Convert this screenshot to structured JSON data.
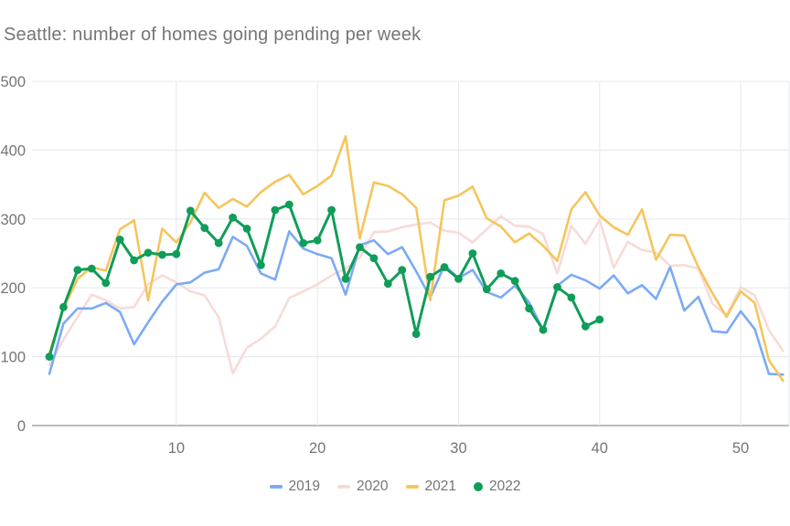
{
  "title": "Seattle: number of homes going pending per week",
  "chart_data": {
    "type": "line",
    "title": "Seattle: number of homes going pending per week",
    "xlabel": "",
    "ylabel": "",
    "x_ticks": [
      10,
      20,
      30,
      40,
      50
    ],
    "y_ticks": [
      0,
      100,
      200,
      300,
      400,
      500
    ],
    "xlim": [
      1,
      53
    ],
    "ylim": [
      0,
      500
    ],
    "grid": true,
    "legend_position": "bottom",
    "colors": {
      "axis_text": "#757575",
      "gridline": "#e8eaed",
      "axis_line": "#b0b3b8",
      "title_text": "#757575"
    },
    "series": [
      {
        "name": "2019",
        "color": "#7baaf7",
        "marker": false,
        "x_start_week": 1,
        "values": [
          75,
          148,
          170,
          170,
          178,
          165,
          118,
          150,
          180,
          205,
          208,
          222,
          227,
          274,
          261,
          221,
          212,
          282,
          257,
          249,
          243,
          190,
          262,
          269,
          249,
          259,
          224,
          186,
          233,
          214,
          226,
          194,
          186,
          203,
          179,
          139,
          203,
          219,
          211,
          199,
          218,
          192,
          204,
          184,
          230,
          167,
          187,
          137,
          135,
          166,
          140,
          75,
          74
        ]
      },
      {
        "name": "2020",
        "color": "#f7dbd8",
        "marker": false,
        "x_start_week": 1,
        "values": [
          88,
          125,
          158,
          190,
          182,
          170,
          172,
          205,
          218,
          208,
          195,
          189,
          157,
          76,
          113,
          126,
          144,
          185,
          195,
          205,
          218,
          228,
          244,
          281,
          282,
          288,
          292,
          295,
          283,
          280,
          266,
          285,
          304,
          290,
          289,
          278,
          221,
          290,
          264,
          299,
          229,
          267,
          255,
          251,
          232,
          233,
          228,
          177,
          160,
          201,
          189,
          139,
          108
        ]
      },
      {
        "name": "2021",
        "color": "#f5c55c",
        "marker": false,
        "x_start_week": 1,
        "values": [
          105,
          170,
          213,
          230,
          225,
          285,
          298,
          182,
          286,
          266,
          295,
          338,
          316,
          329,
          318,
          339,
          354,
          364,
          336,
          348,
          363,
          420,
          272,
          353,
          348,
          336,
          316,
          182,
          327,
          334,
          347,
          301,
          289,
          266,
          279,
          261,
          239,
          314,
          339,
          305,
          288,
          277,
          314,
          241,
          277,
          276,
          230,
          192,
          158,
          195,
          178,
          95,
          65
        ]
      },
      {
        "name": "2022",
        "color": "#0f9d58",
        "marker": true,
        "x_start_week": 1,
        "values": [
          100,
          172,
          226,
          228,
          207,
          270,
          240,
          251,
          248,
          249,
          312,
          287,
          265,
          302,
          286,
          233,
          313,
          321,
          265,
          269,
          313,
          213,
          259,
          243,
          206,
          226,
          133,
          216,
          230,
          213,
          250,
          198,
          221,
          210,
          170,
          139,
          201,
          186,
          144,
          154
        ]
      }
    ]
  }
}
